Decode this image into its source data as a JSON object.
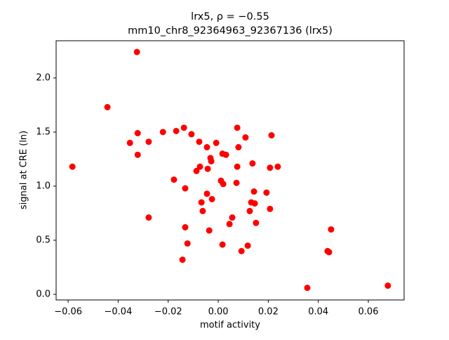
{
  "chart_data": {
    "type": "scatter",
    "title": "lrx5, ρ = −0.55",
    "subtitle": "mm10_chr8_92364963_92367136 (lrx5)",
    "x_label": "motif activity",
    "y_label": "signal at CRE (ln)",
    "color": "#ff0000",
    "x": [
      -0.0325,
      -0.0443,
      -0.0583,
      -0.0353,
      -0.0322,
      -0.0322,
      -0.0278,
      -0.0278,
      -0.0221,
      -0.0168,
      -0.0137,
      -0.0107,
      -0.0076,
      -0.0177,
      -0.0132,
      -0.0087,
      -0.0073,
      -0.0045,
      -0.0042,
      -0.0031,
      -0.0028,
      -0.0008,
      0.0017,
      0.0031,
      0.0011,
      0.002,
      -0.0045,
      -0.0025,
      -0.0067,
      -0.0062,
      -0.0132,
      -0.0123,
      -0.0143,
      -0.0036,
      0.0017,
      0.0045,
      0.0056,
      0.0076,
      0.0081,
      0.0109,
      0.0076,
      0.0073,
      0.0137,
      0.0143,
      0.0132,
      0.0146,
      0.0126,
      0.0151,
      0.0118,
      0.0093,
      0.0193,
      0.0207,
      0.0207,
      0.0213,
      0.0238,
      0.0451,
      0.0437,
      0.0443,
      0.0356,
      0.0678
    ],
    "values": [
      2.24,
      1.73,
      1.18,
      1.4,
      1.49,
      1.29,
      1.41,
      0.71,
      1.5,
      1.51,
      1.54,
      1.48,
      1.41,
      1.06,
      0.98,
      1.14,
      1.18,
      1.36,
      1.16,
      1.26,
      1.23,
      1.4,
      1.3,
      1.29,
      1.05,
      1.02,
      0.93,
      0.88,
      0.85,
      0.77,
      0.62,
      0.47,
      0.32,
      0.59,
      0.46,
      0.65,
      0.71,
      1.54,
      1.36,
      1.45,
      1.18,
      1.03,
      1.21,
      0.95,
      0.85,
      0.84,
      0.77,
      0.66,
      0.45,
      0.4,
      0.94,
      0.79,
      1.17,
      1.47,
      1.18,
      0.6,
      0.4,
      0.39,
      0.06,
      0.08
    ],
    "xlim": [
      -0.0648,
      0.0743
    ],
    "ylim": [
      -0.052,
      2.344
    ],
    "xticks": [
      {
        "value": -0.06,
        "label": "−0.06"
      },
      {
        "value": -0.04,
        "label": "−0.04"
      },
      {
        "value": -0.02,
        "label": "−0.02"
      },
      {
        "value": 0,
        "label": "0.00"
      },
      {
        "value": 0.02,
        "label": "0.02"
      },
      {
        "value": 0.04,
        "label": "0.04"
      },
      {
        "value": 0.06,
        "label": "0.06"
      }
    ],
    "yticks": [
      {
        "value": 0,
        "label": "0.0"
      },
      {
        "value": 0.5,
        "label": "0.5"
      },
      {
        "value": 1,
        "label": "1.0"
      },
      {
        "value": 1.5,
        "label": "1.5"
      },
      {
        "value": 2,
        "label": "2.0"
      }
    ]
  }
}
